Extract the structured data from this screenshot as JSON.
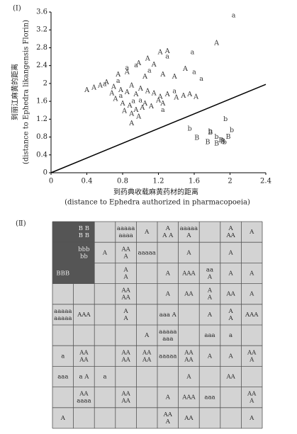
{
  "panel_labels": [
    "(Ⅰ)",
    "(Ⅱ)"
  ],
  "chart_data": {
    "type": "scatter",
    "x_label": "到药典收载麻黄药材的距离",
    "x_label_en": "(distance to Ephedra authorized in pharmacopoeia)",
    "y_label": "到丽江麻黄的距离",
    "y_label_en": "(distance to Ephedra likangensis Florin)",
    "xlim": [
      0,
      2.4
    ],
    "ylim": [
      0,
      3.6
    ],
    "xticks": [
      0,
      0.4,
      0.8,
      1.2,
      1.6,
      2,
      2.4
    ],
    "yticks": [
      0,
      0.4,
      0.8,
      1.2,
      1.6,
      2,
      2.4,
      2.8,
      3.2,
      3.6
    ],
    "reference_line": {
      "x": [
        0,
        2.4
      ],
      "values": [
        0,
        1.98
      ],
      "color": "#000"
    },
    "series": [
      {
        "name": "A",
        "color": "#333",
        "x": [
          1.85,
          1.3,
          1.22,
          1.08,
          0.98,
          1.15,
          0.75,
          0.85,
          1.05,
          1.25,
          1.5,
          1.38,
          0.4,
          0.48,
          0.55,
          0.62,
          0.7,
          0.78,
          0.85,
          0.9,
          0.95,
          1.0,
          1.08,
          1.15,
          1.22,
          1.3,
          0.72,
          0.8,
          0.88,
          0.95,
          1.05,
          1.12,
          1.2,
          0.82,
          0.9,
          0.98,
          1.48,
          1.55,
          1.62,
          1.4,
          0.9,
          1.02,
          0.68,
          1.25
        ],
        "values": [
          2.9,
          2.72,
          2.7,
          2.55,
          2.45,
          2.42,
          2.2,
          2.25,
          2.15,
          2.2,
          2.32,
          2.15,
          1.85,
          1.9,
          1.95,
          2.02,
          1.92,
          1.85,
          1.8,
          1.95,
          1.75,
          1.88,
          1.82,
          1.78,
          1.7,
          1.75,
          1.65,
          1.55,
          1.5,
          1.4,
          1.55,
          1.48,
          1.62,
          1.38,
          1.32,
          1.25,
          1.72,
          1.75,
          1.7,
          1.68,
          1.1,
          1.45,
          1.78,
          1.55
        ]
      },
      {
        "name": "a",
        "color": "#333",
        "x": [
          2.04,
          1.58,
          1.3,
          0.95,
          0.85,
          1.1,
          1.6,
          1.68,
          0.6,
          0.75,
          0.92,
          1.0,
          1.25,
          1.38,
          0.78
        ],
        "values": [
          3.52,
          2.7,
          2.6,
          2.4,
          2.35,
          2.28,
          2.25,
          2.1,
          1.98,
          2.05,
          1.6,
          1.62,
          1.4,
          1.82,
          1.72
        ]
      },
      {
        "name": "B",
        "color": "#333",
        "x": [
          1.63,
          1.78,
          1.85,
          1.92,
          1.98,
          1.75,
          1.9
        ],
        "values": [
          0.78,
          0.9,
          0.65,
          0.7,
          0.8,
          0.68,
          0.72
        ]
      },
      {
        "name": "b",
        "color": "#333",
        "x": [
          1.55,
          1.78,
          1.85,
          1.95,
          1.94,
          2.02
        ],
        "values": [
          0.98,
          0.92,
          0.8,
          1.2,
          0.68,
          0.95
        ]
      }
    ]
  },
  "som": {
    "rows": [
      [
        null,
        [
          "B B",
          "B B"
        ],
        null,
        [
          "aaaaa",
          "aaaa"
        ],
        [
          "A"
        ],
        [
          "A",
          "A A"
        ],
        [
          "aaaaa",
          "A"
        ],
        null,
        [
          "A",
          "AA"
        ],
        [
          "A"
        ]
      ],
      [
        null,
        [
          "bbb",
          "bb"
        ],
        [
          "A"
        ],
        [
          "AA",
          "A"
        ],
        [
          "aaaaa"
        ],
        null,
        [
          "A"
        ],
        null,
        [
          "A"
        ],
        null
      ],
      [
        [
          "BBB"
        ],
        null,
        null,
        [
          "A",
          "A"
        ],
        null,
        [
          "A"
        ],
        [
          "AAA"
        ],
        [
          "aa",
          "A"
        ],
        [
          "A"
        ],
        [
          "A"
        ]
      ],
      [
        null,
        null,
        null,
        [
          "AA",
          "AA"
        ],
        null,
        [
          "A"
        ],
        [
          "AA"
        ],
        [
          "A",
          "A"
        ],
        [
          "AA"
        ],
        [
          "A"
        ]
      ],
      [
        [
          "aaaaa",
          "aaaaa"
        ],
        [
          "AAA"
        ],
        null,
        [
          "A",
          "A"
        ],
        null,
        [
          "aaa A"
        ],
        null,
        [
          "A"
        ],
        [
          "A",
          "A"
        ],
        [
          "AAA"
        ]
      ],
      [
        null,
        null,
        null,
        null,
        [
          "A"
        ],
        [
          "aaaaa",
          "aaa"
        ],
        null,
        [
          "aaa"
        ],
        [
          "a"
        ],
        null
      ],
      [
        [
          "a"
        ],
        [
          "AA",
          "AA"
        ],
        null,
        [
          "AA",
          "AA"
        ],
        [
          "AA",
          "AA"
        ],
        [
          "aaaaa"
        ],
        [
          "AA",
          "AA"
        ],
        [
          "A"
        ],
        [
          "A"
        ],
        [
          "AA",
          "A"
        ]
      ],
      [
        [
          "aaa"
        ],
        [
          "a A"
        ],
        [
          "a"
        ],
        null,
        null,
        null,
        [
          "A"
        ],
        null,
        [
          "AA"
        ],
        null
      ],
      [
        null,
        [
          "AA",
          "aaaa"
        ],
        null,
        [
          "AA",
          "AA"
        ],
        null,
        [
          "A"
        ],
        [
          "AAA"
        ],
        [
          "aaa"
        ],
        null,
        [
          "AA",
          "A"
        ]
      ],
      [
        [
          "A"
        ],
        null,
        null,
        null,
        null,
        [
          "AA",
          "A"
        ],
        [
          "AA"
        ],
        null,
        null,
        [
          "A"
        ]
      ]
    ]
  }
}
